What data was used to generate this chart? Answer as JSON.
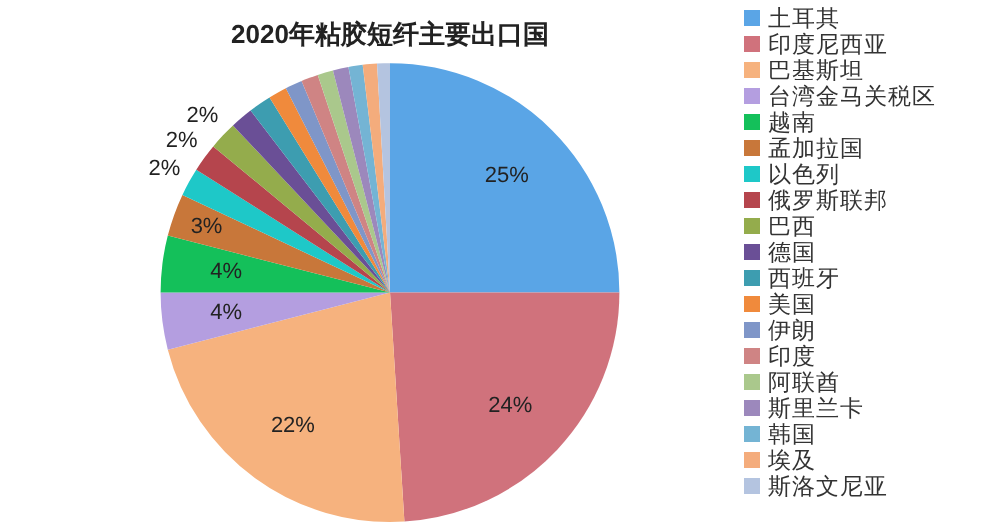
{
  "chart_data": {
    "type": "pie",
    "title": "2020年粘胶短纤主要出口国",
    "categories": [
      "土耳其",
      "印度尼西亚",
      "巴基斯坦",
      "台湾金马关税区",
      "越南",
      "孟加拉国",
      "以色列",
      "俄罗斯联邦",
      "巴西",
      "德国",
      "西班牙",
      "美国",
      "伊朗",
      "印度",
      "阿联酋",
      "斯里兰卡",
      "韩国",
      "埃及",
      "斯洛文尼亚"
    ],
    "values": [
      25,
      24,
      22,
      4,
      4,
      3,
      2,
      2,
      2,
      1.6,
      1.6,
      1.3,
      1.2,
      1.2,
      1.1,
      1.1,
      1.0,
      1.0,
      0.9
    ],
    "colors": [
      "#5aa5e6",
      "#d0727c",
      "#f6b27e",
      "#b49ee0",
      "#14c05a",
      "#c8773a",
      "#1ec8c8",
      "#b5454d",
      "#94ac4c",
      "#6a4f96",
      "#3d9db0",
      "#f08a3c",
      "#7f96c8",
      "#cf8484",
      "#aac88c",
      "#9c88bc",
      "#74b4d4",
      "#f4ac7c",
      "#b4c4e0"
    ],
    "value_labels": [
      "25%",
      "24%",
      "22%",
      "4%",
      "4%",
      "3%",
      "2%",
      "2%",
      "2%",
      null,
      null,
      null,
      null,
      null,
      null,
      null,
      null,
      null,
      null
    ],
    "legend": "right"
  }
}
